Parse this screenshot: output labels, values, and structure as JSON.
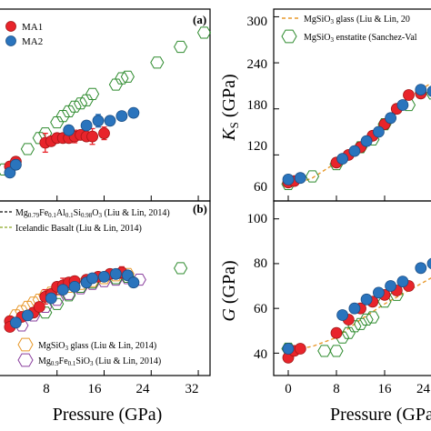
{
  "chart_data": [
    {
      "panel": "top-left",
      "panel_label": "(a)",
      "type": "scatter",
      "xlim": [
        -2,
        34
      ],
      "ylim": [
        -10,
        112
      ],
      "legend_position": "top-left",
      "series": [
        {
          "name": "MA1",
          "marker": "circle",
          "color": "#e8242b",
          "edge": "#a31515",
          "points": [
            [
              0,
              12
            ],
            [
              1,
              15
            ],
            [
              6,
              27
            ],
            [
              7,
              28
            ],
            [
              8,
              30
            ],
            [
              9,
              30
            ],
            [
              10,
              30
            ],
            [
              11,
              31
            ],
            [
              12,
              32
            ],
            [
              13,
              31
            ],
            [
              14,
              31
            ],
            [
              16,
              33
            ]
          ],
          "errors": [
            0,
            0,
            6,
            0,
            0,
            0,
            0,
            4,
            0,
            0,
            5,
            4
          ]
        },
        {
          "name": "MA2",
          "marker": "circle",
          "color": "#2a74bd",
          "edge": "#1b4f86",
          "points": [
            [
              0,
              8
            ],
            [
              1,
              13
            ],
            [
              10,
              35
            ],
            [
              13,
              38
            ],
            [
              15,
              41
            ],
            [
              17,
              41
            ],
            [
              19,
              44
            ],
            [
              21,
              46
            ]
          ],
          "errors": [
            0,
            0,
            0,
            0,
            4,
            0,
            0,
            0
          ]
        },
        {
          "name": "",
          "marker": "hexagon-open",
          "color": "#2e8b2e",
          "points": [
            [
              -1,
              10
            ],
            [
              3,
              23
            ],
            [
              5,
              30
            ],
            [
              6,
              33
            ],
            [
              8,
              40
            ],
            [
              9,
              44
            ],
            [
              10,
              47
            ],
            [
              11,
              50
            ],
            [
              12,
              52
            ],
            [
              13,
              54
            ],
            [
              14,
              58
            ],
            [
              18,
              64
            ],
            [
              19,
              68
            ],
            [
              20,
              69
            ],
            [
              25,
              78
            ],
            [
              29,
              88
            ],
            [
              33,
              97
            ]
          ],
          "errors": []
        }
      ]
    },
    {
      "panel": "bottom-left",
      "panel_label": "(b)",
      "type": "scatter",
      "xlim": [
        -2,
        34
      ],
      "ylim": [
        -10,
        112
      ],
      "legend_position": "top-left and bottom-left",
      "series": [
        {
          "name": "Mg0.79Fe0.1Al0.1Si0.98O3 (Liu & Lin, 2014)",
          "marker": "line-dashed",
          "color": "#111111",
          "points": [],
          "errors": []
        },
        {
          "name": "Icelandic Basalt (Liu & Lin, 2014)",
          "marker": "line-dashed",
          "color": "#8aa625",
          "points": [],
          "errors": []
        },
        {
          "name": "",
          "marker": "circle",
          "color": "#e8242b",
          "edge": "#a31515",
          "points": [
            [
              0,
              28
            ],
            [
              0,
              24
            ],
            [
              2,
              31
            ],
            [
              4,
              34
            ],
            [
              5,
              38
            ],
            [
              6,
              45
            ],
            [
              7,
              47
            ],
            [
              8,
              52
            ],
            [
              9,
              53
            ],
            [
              10,
              55
            ],
            [
              11,
              56
            ],
            [
              13,
              57
            ],
            [
              15,
              59
            ],
            [
              17,
              61
            ],
            [
              19,
              62
            ]
          ],
          "errors": [
            0,
            0,
            0,
            0,
            0,
            5,
            0,
            0,
            5,
            0,
            0,
            0,
            0,
            0,
            4
          ]
        },
        {
          "name": "",
          "marker": "circle",
          "color": "#2a74bd",
          "edge": "#1b4f86",
          "points": [
            [
              1,
              27
            ],
            [
              3,
              32
            ],
            [
              7,
              44
            ],
            [
              9,
              50
            ],
            [
              11,
              52
            ],
            [
              13,
              55
            ],
            [
              14,
              58
            ],
            [
              16,
              59
            ],
            [
              18,
              61
            ],
            [
              20,
              60
            ],
            [
              21,
              55
            ]
          ],
          "errors": [
            0,
            0,
            0,
            0,
            0,
            0,
            0,
            0,
            0,
            0,
            3
          ]
        },
        {
          "name": "MgSiO3 glass (Liu & Lin, 2014)",
          "marker": "hexagon-open",
          "color": "#e8982a",
          "points": [
            [
              1,
              32
            ],
            [
              2,
              35
            ],
            [
              3,
              38
            ],
            [
              4,
              41
            ],
            [
              5,
              43
            ],
            [
              6,
              46
            ],
            [
              7,
              48
            ],
            [
              8,
              50
            ],
            [
              10,
              52
            ],
            [
              12,
              54
            ],
            [
              14,
              56
            ],
            [
              16,
              58
            ],
            [
              18,
              60
            ],
            [
              20,
              61
            ]
          ],
          "errors": []
        },
        {
          "name": "Mg0.9Fe0.1SiO3 (Liu & Lin, 2014)",
          "marker": "hexagon-open",
          "color": "#8a3f9e",
          "points": [
            [
              2,
              25
            ],
            [
              4,
              32
            ],
            [
              6,
              38
            ],
            [
              8,
              43
            ],
            [
              10,
              47
            ],
            [
              12,
              51
            ],
            [
              14,
              54
            ],
            [
              16,
              56
            ],
            [
              18,
              57
            ],
            [
              20,
              58
            ],
            [
              22,
              57
            ]
          ],
          "errors": []
        },
        {
          "name": "",
          "marker": "hexagon-open",
          "color": "#2e8b2e",
          "points": [
            [
              6,
              34
            ],
            [
              8,
              40
            ],
            [
              10,
              46
            ],
            [
              12,
              52
            ],
            [
              14,
              55
            ],
            [
              18,
              58
            ],
            [
              20,
              59
            ],
            [
              29,
              65
            ]
          ],
          "errors": []
        }
      ]
    },
    {
      "panel": "top-right",
      "type": "scatter",
      "xlim": [
        -2,
        34
      ],
      "ylim": [
        60,
        310
      ],
      "ylabel": "K_S (GPa)",
      "yticks": [
        60,
        120,
        180,
        240,
        300
      ],
      "legend_position": "top",
      "series": [
        {
          "name": "MgSiO3 glass (Liu & Lin, 20",
          "marker": "line-dashed",
          "color": "#e8982a",
          "points": [
            [
              0,
              78
            ],
            [
              4,
              90
            ],
            [
              8,
              110
            ],
            [
              12,
              135
            ],
            [
              16,
              165
            ],
            [
              20,
              195
            ],
            [
              24,
              215
            ]
          ],
          "errors": []
        },
        {
          "name": "MgSiO3 enstatite (Sanchez-Val",
          "marker": "hexagon-open",
          "color": "#2e8b2e",
          "points": [
            [
              0,
              82
            ],
            [
              4,
              92
            ],
            [
              8,
              108
            ],
            [
              12,
              130
            ],
            [
              14,
              140
            ],
            [
              16,
              160
            ],
            [
              20,
              185
            ],
            [
              24,
              200
            ]
          ],
          "errors": []
        },
        {
          "name": "",
          "marker": "circle",
          "color": "#e8242b",
          "edge": "#a31515",
          "points": [
            [
              0,
              84
            ],
            [
              1,
              86
            ],
            [
              8,
              110
            ],
            [
              10,
              120
            ],
            [
              12,
              130
            ],
            [
              14,
              145
            ],
            [
              16,
              160
            ],
            [
              18,
              180
            ],
            [
              20,
              198
            ],
            [
              22,
              200
            ]
          ],
          "errors": []
        },
        {
          "name": "",
          "marker": "circle",
          "color": "#2a74bd",
          "edge": "#1b4f86",
          "points": [
            [
              0,
              88
            ],
            [
              2,
              90
            ],
            [
              9,
              115
            ],
            [
              11,
              125
            ],
            [
              13,
              138
            ],
            [
              15,
              150
            ],
            [
              17,
              168
            ],
            [
              19,
              185
            ],
            [
              22,
              205
            ],
            [
              24,
              203
            ]
          ],
          "errors": []
        }
      ]
    },
    {
      "panel": "bottom-right",
      "type": "scatter",
      "xlim": [
        -2,
        34
      ],
      "ylim": [
        30,
        108
      ],
      "ylabel": "G (GPa)",
      "yticks": [
        40,
        60,
        80,
        100
      ],
      "series": [
        {
          "name": "",
          "marker": "line-dashed",
          "color": "#e8982a",
          "points": [
            [
              0,
              41
            ],
            [
              4,
              43
            ],
            [
              8,
              47
            ],
            [
              12,
              55
            ],
            [
              16,
              62
            ],
            [
              20,
              68
            ],
            [
              24,
              74
            ]
          ],
          "errors": []
        },
        {
          "name": "",
          "marker": "hexagon-open",
          "color": "#2e8b2e",
          "points": [
            [
              0,
              42
            ],
            [
              6,
              41
            ],
            [
              8,
              41
            ],
            [
              9,
              47
            ],
            [
              10,
              49
            ],
            [
              11,
              52
            ],
            [
              12,
              53
            ],
            [
              13,
              55
            ],
            [
              14,
              56
            ],
            [
              16,
              63
            ],
            [
              18,
              66
            ]
          ],
          "errors": []
        },
        {
          "name": "",
          "marker": "circle",
          "color": "#e8242b",
          "edge": "#a31515",
          "points": [
            [
              0,
              38
            ],
            [
              1,
              41
            ],
            [
              2,
              42
            ],
            [
              8,
              49
            ],
            [
              10,
              55
            ],
            [
              12,
              60
            ],
            [
              14,
              63
            ],
            [
              16,
              66
            ],
            [
              18,
              68
            ],
            [
              20,
              70
            ]
          ],
          "errors": []
        },
        {
          "name": "",
          "marker": "circle",
          "color": "#2a74bd",
          "edge": "#1b4f86",
          "points": [
            [
              0,
              42
            ],
            [
              9,
              57
            ],
            [
              11,
              60
            ],
            [
              13,
              64
            ],
            [
              15,
              67
            ],
            [
              17,
              70
            ],
            [
              19,
              72
            ],
            [
              22,
              78
            ],
            [
              24,
              80
            ]
          ],
          "errors": []
        }
      ]
    }
  ],
  "axes_text": {
    "left_xlabel": "Pressure (GPa)",
    "right_xlabel": "Pressure (GPa",
    "left_xticks": [
      "8",
      "16",
      "24",
      "32"
    ],
    "right_xticks": [
      "0",
      "8",
      "16",
      "24"
    ],
    "topright_ylabel_main": "K",
    "topright_ylabel_sub": "S",
    "topright_ylabel_unit": " (GPa)",
    "bottomright_ylabel": "G (GPa)",
    "topright_yticks": [
      "60",
      "120",
      "180",
      "240",
      "300"
    ],
    "bottomright_yticks": [
      "40",
      "60",
      "80",
      "100"
    ]
  },
  "legend_text": {
    "a_label": "(a)",
    "b_label": "(b)",
    "ma1": "MA1",
    "ma2": "MA2",
    "b_line1_pre": "Mg",
    "b_line1_sub1": "0.79",
    "b_line1_mid1": "Fe",
    "b_line1_sub2": "0.1",
    "b_line1_mid2": "Al",
    "b_line1_sub3": "0.1",
    "b_line1_mid3": "Si",
    "b_line1_sub4": "0.98",
    "b_line1_mid4": "O",
    "b_line1_sub5": "3",
    "b_line1_post": " (Liu & Lin, 2014)",
    "b_line2": "Icelandic Basalt (Liu & Lin, 2014)",
    "b_hex1_pre": "MgSiO",
    "b_hex1_sub": "3",
    "b_hex1_post": " glass (Liu & Lin, 2014)",
    "b_hex2_pre": "Mg",
    "b_hex2_sub1": "0.9",
    "b_hex2_mid": "Fe",
    "b_hex2_sub2": "0.1",
    "b_hex2_mid2": "SiO",
    "b_hex2_sub3": "3",
    "b_hex2_post": " (Liu & Lin, 2014)",
    "r_line_pre": "MgSiO",
    "r_line_sub": "3",
    "r_line_post": " glass (Liu & Lin, 20",
    "r_hex_pre": "MgSiO",
    "r_hex_sub": "3",
    "r_hex_post": " enstatite (Sanchez-Val"
  }
}
